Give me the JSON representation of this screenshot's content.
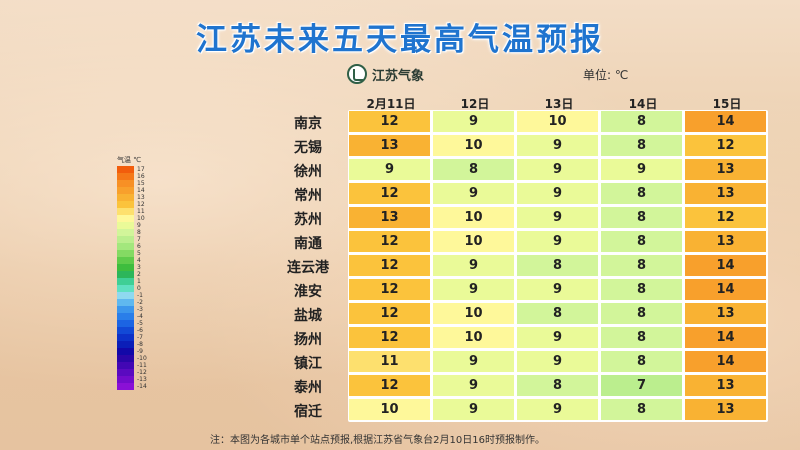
{
  "title": "江苏未来五天最高气温预报",
  "brand": {
    "name": "江苏气象"
  },
  "unit_label": "单位: ℃",
  "footnote": "注：本图为各城市单个站点预报,根据江苏省气象台2月10日16时预报制作。",
  "legend": {
    "title": "气温 ℃",
    "levels": [
      {
        "label": "17",
        "color": "#f25d0c"
      },
      {
        "label": "16",
        "color": "#f57818"
      },
      {
        "label": "15",
        "color": "#f79025"
      },
      {
        "label": "14",
        "color": "#f8a02c"
      },
      {
        "label": "13",
        "color": "#f9b233"
      },
      {
        "label": "12",
        "color": "#fbc33c"
      },
      {
        "label": "11",
        "color": "#fde06e"
      },
      {
        "label": "10",
        "color": "#fef89a"
      },
      {
        "label": "9",
        "color": "#eafa98"
      },
      {
        "label": "8",
        "color": "#d2f59a"
      },
      {
        "label": "7",
        "color": "#bbee8e"
      },
      {
        "label": "6",
        "color": "#a3e77d"
      },
      {
        "label": "5",
        "color": "#84da63"
      },
      {
        "label": "4",
        "color": "#5fcb4b"
      },
      {
        "label": "3",
        "color": "#3ebd3e"
      },
      {
        "label": "2",
        "color": "#2cb65a"
      },
      {
        "label": "1",
        "color": "#3fcf95"
      },
      {
        "label": "0",
        "color": "#5fe0c1"
      },
      {
        "label": "-1",
        "color": "#8fd9ef"
      },
      {
        "label": "-2",
        "color": "#5fb8ef"
      },
      {
        "label": "-3",
        "color": "#3c96ec"
      },
      {
        "label": "-4",
        "color": "#2a7ee9"
      },
      {
        "label": "-5",
        "color": "#1c64e3"
      },
      {
        "label": "-6",
        "color": "#1249d6"
      },
      {
        "label": "-7",
        "color": "#0d31c8"
      },
      {
        "label": "-8",
        "color": "#0b1eb8"
      },
      {
        "label": "-9",
        "color": "#1208a8"
      },
      {
        "label": "-10",
        "color": "#2a06a8"
      },
      {
        "label": "-11",
        "color": "#4207b4"
      },
      {
        "label": "-12",
        "color": "#5a0ac0"
      },
      {
        "label": "-13",
        "color": "#720ccb"
      },
      {
        "label": "-14",
        "color": "#8a10d6"
      }
    ]
  },
  "chart_data": {
    "type": "table",
    "title": "江苏未来五天最高气温预报",
    "unit": "℃",
    "columns": [
      "2月11日",
      "12日",
      "13日",
      "14日",
      "15日"
    ],
    "rows": [
      {
        "city": "南京",
        "values": [
          12,
          9,
          10,
          8,
          14
        ]
      },
      {
        "city": "无锡",
        "values": [
          13,
          10,
          9,
          8,
          12
        ]
      },
      {
        "city": "徐州",
        "values": [
          9,
          8,
          9,
          9,
          13
        ]
      },
      {
        "city": "常州",
        "values": [
          12,
          9,
          9,
          8,
          13
        ]
      },
      {
        "city": "苏州",
        "values": [
          13,
          10,
          9,
          8,
          12
        ]
      },
      {
        "city": "南通",
        "values": [
          12,
          10,
          9,
          8,
          13
        ]
      },
      {
        "city": "连云港",
        "values": [
          12,
          9,
          8,
          8,
          14
        ]
      },
      {
        "city": "淮安",
        "values": [
          12,
          9,
          9,
          8,
          14
        ]
      },
      {
        "city": "盐城",
        "values": [
          12,
          10,
          8,
          8,
          13
        ]
      },
      {
        "city": "扬州",
        "values": [
          12,
          10,
          9,
          8,
          14
        ]
      },
      {
        "city": "镇江",
        "values": [
          11,
          9,
          9,
          8,
          14
        ]
      },
      {
        "city": "泰州",
        "values": [
          12,
          9,
          8,
          7,
          13
        ]
      },
      {
        "city": "宿迁",
        "values": [
          10,
          9,
          9,
          8,
          13
        ]
      }
    ]
  }
}
